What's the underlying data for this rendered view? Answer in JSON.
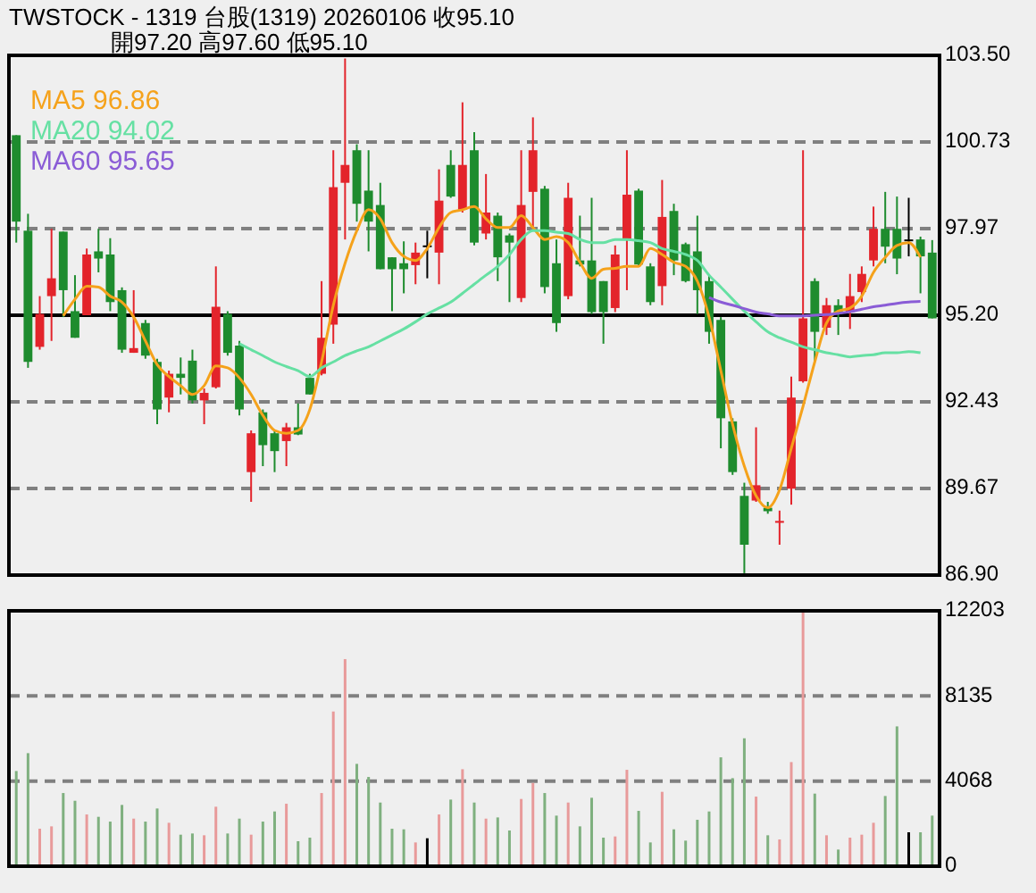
{
  "chart_data": [
    {
      "type": "candlestick",
      "title": "TWSTOCK - 1319 台股(1319) 20260106 收95.10",
      "subtitle": "開97.20 高97.60 低95.10",
      "categories": [
        null,
        null,
        null,
        null,
        null,
        null,
        null,
        null,
        null,
        null,
        null,
        null,
        null,
        null,
        null,
        null,
        null,
        null,
        null,
        null,
        null,
        null,
        null,
        null,
        null,
        null,
        null,
        null,
        null,
        null,
        null,
        null,
        null,
        null,
        null,
        null,
        null,
        null,
        null,
        null,
        null,
        null,
        null,
        null,
        null,
        null,
        null,
        null,
        null,
        null,
        null,
        null,
        null,
        null,
        null,
        null,
        null,
        null,
        null,
        null,
        null,
        null,
        null,
        null,
        null,
        null,
        null,
        null,
        null,
        null,
        null,
        null,
        null,
        null,
        null,
        null,
        null,
        null,
        null
      ],
      "ohlc": [
        [
          100.95,
          100.95,
          97.52,
          98.19
        ],
        [
          97.9,
          98.44,
          93.52,
          93.71
        ],
        [
          94.19,
          95.81,
          94.1,
          95.24
        ],
        [
          95.81,
          97.96,
          94.38,
          96.38
        ],
        [
          97.87,
          97.87,
          95.14,
          96.0
        ],
        [
          95.33,
          96.48,
          94.48,
          94.48
        ],
        [
          95.2,
          97.33,
          95.2,
          97.14
        ],
        [
          97.24,
          97.96,
          96.57,
          97.01
        ],
        [
          97.14,
          97.66,
          95.33,
          95.62
        ],
        [
          96.0,
          96.09,
          94.0,
          94.1
        ],
        [
          94.0,
          96.0,
          94.0,
          94.15
        ],
        [
          94.95,
          95.05,
          93.81,
          93.91
        ],
        [
          93.71,
          93.81,
          91.72,
          92.19
        ],
        [
          92.57,
          93.43,
          92.1,
          93.33
        ],
        [
          93.33,
          93.85,
          92.67,
          93.2
        ],
        [
          93.75,
          94.1,
          92.38,
          92.48
        ],
        [
          92.48,
          92.86,
          91.72,
          92.72
        ],
        [
          92.9,
          96.76,
          92.86,
          95.47
        ],
        [
          95.24,
          95.33,
          93.91,
          94.0
        ],
        [
          94.23,
          94.38,
          92.0,
          92.19
        ],
        [
          90.19,
          91.52,
          89.24,
          91.43
        ],
        [
          92.1,
          92.19,
          90.38,
          91.05
        ],
        [
          91.43,
          91.52,
          90.19,
          90.86
        ],
        [
          91.18,
          91.76,
          90.38,
          91.62
        ],
        [
          91.62,
          92.38,
          91.37,
          91.39
        ],
        [
          93.2,
          93.33,
          92.67,
          92.67
        ],
        [
          93.33,
          96.29,
          93.28,
          94.48
        ],
        [
          94.9,
          100.47,
          94.29,
          99.29
        ],
        [
          99.43,
          103.4,
          97.62,
          100.0
        ],
        [
          100.47,
          100.66,
          98.19,
          98.76
        ],
        [
          99.18,
          100.47,
          97.24,
          98.19
        ],
        [
          98.72,
          99.43,
          96.67,
          96.67
        ],
        [
          97.05,
          97.05,
          95.33,
          96.67
        ],
        [
          96.86,
          97.56,
          95.9,
          96.67
        ],
        [
          96.8,
          97.52,
          96.19,
          97.2
        ],
        [
          97.43,
          97.9,
          96.38,
          97.43
        ],
        [
          97.2,
          99.86,
          96.19,
          98.86
        ],
        [
          100.0,
          100.47,
          98.95,
          98.99
        ],
        [
          98.57,
          102.0,
          98.48,
          100.0
        ],
        [
          100.47,
          101.05,
          97.43,
          97.52
        ],
        [
          97.81,
          99.71,
          97.62,
          98.48
        ],
        [
          98.38,
          98.48,
          96.29,
          97.05
        ],
        [
          97.75,
          97.81,
          95.62,
          97.52
        ],
        [
          95.75,
          100.47,
          95.62,
          98.72
        ],
        [
          99.14,
          101.52,
          98.0,
          100.47
        ],
        [
          99.24,
          99.33,
          95.9,
          96.1
        ],
        [
          96.86,
          97.62,
          94.67,
          94.95
        ],
        [
          95.81,
          99.43,
          95.71,
          98.95
        ],
        [
          96.95,
          98.38,
          96.76,
          96.82
        ],
        [
          96.95,
          98.95,
          95.24,
          95.3
        ],
        [
          96.29,
          96.29,
          94.29,
          95.3
        ],
        [
          95.43,
          97.43,
          95.3,
          97.14
        ],
        [
          97.62,
          100.47,
          96.0,
          99.05
        ],
        [
          99.18,
          99.24,
          96.76,
          96.82
        ],
        [
          96.76,
          96.86,
          95.52,
          95.62
        ],
        [
          96.13,
          99.52,
          95.52,
          98.34
        ],
        [
          98.53,
          98.76,
          96.48,
          96.95
        ],
        [
          97.47,
          97.52,
          96.25,
          96.29
        ],
        [
          97.24,
          98.38,
          95.24,
          96.0
        ],
        [
          96.29,
          96.48,
          94.29,
          94.67
        ],
        [
          95.05,
          95.14,
          90.95,
          91.91
        ],
        [
          91.81,
          91.91,
          90.1,
          90.19
        ],
        [
          89.43,
          89.85,
          86.96,
          87.87
        ],
        [
          89.28,
          91.62,
          89.24,
          89.77
        ],
        [
          89.05,
          89.24,
          88.86,
          88.94
        ],
        [
          88.57,
          88.96,
          87.87,
          88.63
        ],
        [
          89.66,
          93.24,
          89.15,
          92.57
        ],
        [
          93.09,
          100.47,
          93.05,
          95.1
        ],
        [
          96.29,
          96.38,
          93.71,
          94.67
        ],
        [
          94.8,
          95.75,
          94.57,
          95.52
        ],
        [
          95.52,
          95.71,
          94.57,
          95.24
        ],
        [
          95.3,
          96.52,
          94.76,
          95.81
        ],
        [
          95.94,
          96.76,
          95.62,
          96.52
        ],
        [
          96.95,
          98.67,
          96.76,
          97.96
        ],
        [
          97.96,
          99.14,
          96.86,
          97.39
        ],
        [
          97.96,
          98.99,
          96.51,
          97.01
        ],
        [
          97.62,
          98.95,
          97.08,
          97.62
        ],
        [
          97.62,
          97.71,
          95.9,
          97.08
        ],
        [
          97.2,
          97.6,
          95.1,
          95.1
        ]
      ],
      "colors": [
        "#1e8c2e",
        "#1e8c2e",
        "#e3242b",
        "#e3242b",
        "#1e8c2e",
        "#1e8c2e",
        "#e3242b",
        "#1e8c2e",
        "#1e8c2e",
        "#1e8c2e",
        "#e3242b",
        "#1e8c2e",
        "#1e8c2e",
        "#e3242b",
        "#1e8c2e",
        "#1e8c2e",
        "#e3242b",
        "#e3242b",
        "#1e8c2e",
        "#1e8c2e",
        "#e3242b",
        "#1e8c2e",
        "#1e8c2e",
        "#e3242b",
        "#1e8c2e",
        "#1e8c2e",
        "#e3242b",
        "#e3242b",
        "#e3242b",
        "#1e8c2e",
        "#1e8c2e",
        "#1e8c2e",
        "#1e8c2e",
        "#1e8c2e",
        "#e3242b",
        "#000000",
        "#e3242b",
        "#1e8c2e",
        "#e3242b",
        "#1e8c2e",
        "#e3242b",
        "#1e8c2e",
        "#1e8c2e",
        "#e3242b",
        "#e3242b",
        "#1e8c2e",
        "#1e8c2e",
        "#e3242b",
        "#1e8c2e",
        "#1e8c2e",
        "#1e8c2e",
        "#e3242b",
        "#e3242b",
        "#1e8c2e",
        "#1e8c2e",
        "#e3242b",
        "#1e8c2e",
        "#1e8c2e",
        "#1e8c2e",
        "#1e8c2e",
        "#1e8c2e",
        "#1e8c2e",
        "#1e8c2e",
        "#e3242b",
        "#1e8c2e",
        "#e3242b",
        "#e3242b",
        "#e3242b",
        "#1e8c2e",
        "#e3242b",
        "#1e8c2e",
        "#e3242b",
        "#e3242b",
        "#e3242b",
        "#1e8c2e",
        "#1e8c2e",
        "#000000",
        "#1e8c2e",
        "#1e8c2e"
      ],
      "series": [
        {
          "type": "line",
          "name": "MA5 96.86",
          "color": "#f5a21b",
          "values": [
            null,
            null,
            null,
            null,
            95.18,
            95.71,
            96.13,
            96.1,
            95.81,
            95.62,
            95.14,
            94.38,
            93.62,
            93.24,
            92.95,
            92.67,
            92.95,
            93.58,
            93.52,
            93.2,
            92.67,
            92.0,
            91.52,
            91.43,
            91.52,
            92.19,
            93.71,
            95.52,
            96.86,
            97.9,
            98.57,
            98.28,
            97.52,
            97.08,
            96.95,
            97.33,
            98.0,
            98.48,
            98.57,
            98.67,
            98.28,
            98.0,
            98.0,
            98.38,
            98.0,
            97.62,
            97.71,
            97.52,
            96.89,
            96.38,
            96.67,
            96.7,
            96.76,
            96.76,
            97.33,
            97.14,
            96.89,
            96.76,
            96.29,
            95.14,
            93.43,
            91.72,
            90.38,
            89.43,
            89.05,
            89.62,
            90.95,
            92.29,
            93.71,
            94.95,
            95.33,
            95.43,
            95.81,
            96.57,
            97.05,
            97.43,
            97.52,
            97.05,
            null
          ]
        },
        {
          "type": "line",
          "name": "MA20 94.02",
          "color": "#66e0a3",
          "values": [
            null,
            null,
            null,
            null,
            null,
            null,
            null,
            null,
            null,
            null,
            null,
            null,
            null,
            null,
            null,
            null,
            null,
            null,
            null,
            94.29,
            94.1,
            93.91,
            93.71,
            93.56,
            93.43,
            93.24,
            93.52,
            93.71,
            93.91,
            94.06,
            94.19,
            94.38,
            94.57,
            94.76,
            94.99,
            95.24,
            95.43,
            95.62,
            95.9,
            96.19,
            96.48,
            96.76,
            97.14,
            97.62,
            97.9,
            97.9,
            97.85,
            97.81,
            97.62,
            97.52,
            97.52,
            97.62,
            97.62,
            97.58,
            97.52,
            97.33,
            97.24,
            97.14,
            96.95,
            96.48,
            96.1,
            95.71,
            95.33,
            94.99,
            94.67,
            94.48,
            94.34,
            94.19,
            94.1,
            94.0,
            93.94,
            93.87,
            93.91,
            93.94,
            94.0,
            94.0,
            94.04,
            94.0,
            null
          ]
        },
        {
          "type": "line",
          "name": "MA60 95.65",
          "color": "#8a5cd6",
          "values": [
            null,
            null,
            null,
            null,
            null,
            null,
            null,
            null,
            null,
            null,
            null,
            null,
            null,
            null,
            null,
            null,
            null,
            null,
            null,
            null,
            null,
            null,
            null,
            null,
            null,
            null,
            null,
            null,
            null,
            null,
            null,
            null,
            null,
            null,
            null,
            null,
            null,
            null,
            null,
            null,
            null,
            null,
            null,
            null,
            null,
            null,
            null,
            null,
            null,
            null,
            null,
            null,
            null,
            null,
            null,
            null,
            null,
            null,
            null,
            95.77,
            95.62,
            95.52,
            95.41,
            95.3,
            95.24,
            95.18,
            95.18,
            95.18,
            95.2,
            95.22,
            95.26,
            95.31,
            95.39,
            95.47,
            95.52,
            95.58,
            95.62,
            95.64,
            null
          ]
        }
      ],
      "ylim": [
        86.9,
        103.5
      ],
      "yticks": [
        {
          "value": 86.9,
          "label": "86.90"
        },
        {
          "value": 89.67,
          "label": "89.67"
        },
        {
          "value": 92.43,
          "label": "92.43"
        },
        {
          "value": 95.2,
          "label": "95.20"
        },
        {
          "value": 97.97,
          "label": "97.97"
        },
        {
          "value": 100.73,
          "label": "100.73"
        },
        {
          "value": 103.5,
          "label": "103.50"
        }
      ],
      "grid": "y",
      "legend": "top left",
      "tick_labels": "y",
      "ref_lines": [
        {
          "axis": "y",
          "value": 95.2,
          "color": "#000000"
        }
      ]
    },
    {
      "type": "bar",
      "categories": [
        null,
        null,
        null,
        null,
        null,
        null,
        null,
        null,
        null,
        null,
        null,
        null,
        null,
        null,
        null,
        null,
        null,
        null,
        null,
        null,
        null,
        null,
        null,
        null,
        null,
        null,
        null,
        null,
        null,
        null,
        null,
        null,
        null,
        null,
        null,
        null,
        null,
        null,
        null,
        null,
        null,
        null,
        null,
        null,
        null,
        null,
        null,
        null,
        null,
        null,
        null,
        null,
        null,
        null,
        null,
        null,
        null,
        null,
        null,
        null,
        null,
        null,
        null,
        null,
        null,
        null,
        null,
        null,
        null,
        null,
        null,
        null,
        null,
        null,
        null,
        null,
        null,
        null,
        null
      ],
      "values": [
        4549,
        5402,
        1791,
        1905,
        3497,
        3127,
        2473,
        2360,
        2132,
        2928,
        2274,
        2132,
        2758,
        2075,
        1507,
        1564,
        1478,
        2843,
        1564,
        2274,
        1507,
        2132,
        2616,
        2985,
        1194,
        1365,
        3497,
        7392,
        9894,
        4890,
        4265,
        3042,
        1791,
        1763,
        1137,
        1336,
        2473,
        3184,
        4634,
        3042,
        2274,
        2331,
        1706,
        3213,
        3980,
        3497,
        2417,
        3042,
        1905,
        3270,
        1365,
        1422,
        4606,
        2644,
        1137,
        3554,
        1763,
        1222,
        2217,
        2616,
        5203,
        4208,
        6112,
        3326,
        1478,
        1279,
        4975,
        12200,
        3469,
        1478,
        796,
        1365,
        1507,
        2075,
        3355,
        6681,
        1621,
        1621,
        2417
      ],
      "colors": [
        "#7fb07f",
        "#7fb07f",
        "#e89a9a",
        "#e89a9a",
        "#7fb07f",
        "#7fb07f",
        "#e89a9a",
        "#7fb07f",
        "#7fb07f",
        "#7fb07f",
        "#e89a9a",
        "#7fb07f",
        "#7fb07f",
        "#e89a9a",
        "#7fb07f",
        "#7fb07f",
        "#e89a9a",
        "#e89a9a",
        "#7fb07f",
        "#7fb07f",
        "#e89a9a",
        "#7fb07f",
        "#7fb07f",
        "#e89a9a",
        "#7fb07f",
        "#7fb07f",
        "#e89a9a",
        "#e89a9a",
        "#e89a9a",
        "#7fb07f",
        "#7fb07f",
        "#7fb07f",
        "#7fb07f",
        "#7fb07f",
        "#e89a9a",
        "#000000",
        "#e89a9a",
        "#7fb07f",
        "#e89a9a",
        "#7fb07f",
        "#e89a9a",
        "#7fb07f",
        "#7fb07f",
        "#e89a9a",
        "#e89a9a",
        "#7fb07f",
        "#7fb07f",
        "#e89a9a",
        "#7fb07f",
        "#7fb07f",
        "#7fb07f",
        "#e89a9a",
        "#e89a9a",
        "#7fb07f",
        "#7fb07f",
        "#e89a9a",
        "#7fb07f",
        "#7fb07f",
        "#7fb07f",
        "#7fb07f",
        "#7fb07f",
        "#7fb07f",
        "#7fb07f",
        "#e89a9a",
        "#7fb07f",
        "#e89a9a",
        "#e89a9a",
        "#e89a9a",
        "#7fb07f",
        "#e89a9a",
        "#7fb07f",
        "#e89a9a",
        "#e89a9a",
        "#e89a9a",
        "#7fb07f",
        "#7fb07f",
        "#000000",
        "#7fb07f",
        "#7fb07f"
      ],
      "ylim": [
        0,
        12203
      ],
      "yticks": [
        0,
        4068,
        8135,
        12203
      ],
      "grid": "y",
      "tick_labels": "y"
    }
  ]
}
